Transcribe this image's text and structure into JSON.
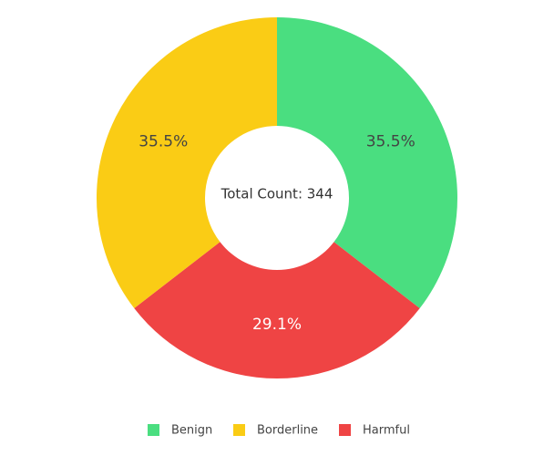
{
  "chart_data": {
    "type": "donut",
    "center_text": "Total Count: 344",
    "categories": [
      "Benign",
      "Borderline",
      "Harmful"
    ],
    "values": [
      35.5,
      35.5,
      29.1
    ],
    "value_labels": [
      "35.5%",
      "35.5%",
      "29.1%"
    ],
    "colors": [
      "#4ade80",
      "#facc15",
      "#ef4444"
    ],
    "legend": "bottom"
  }
}
